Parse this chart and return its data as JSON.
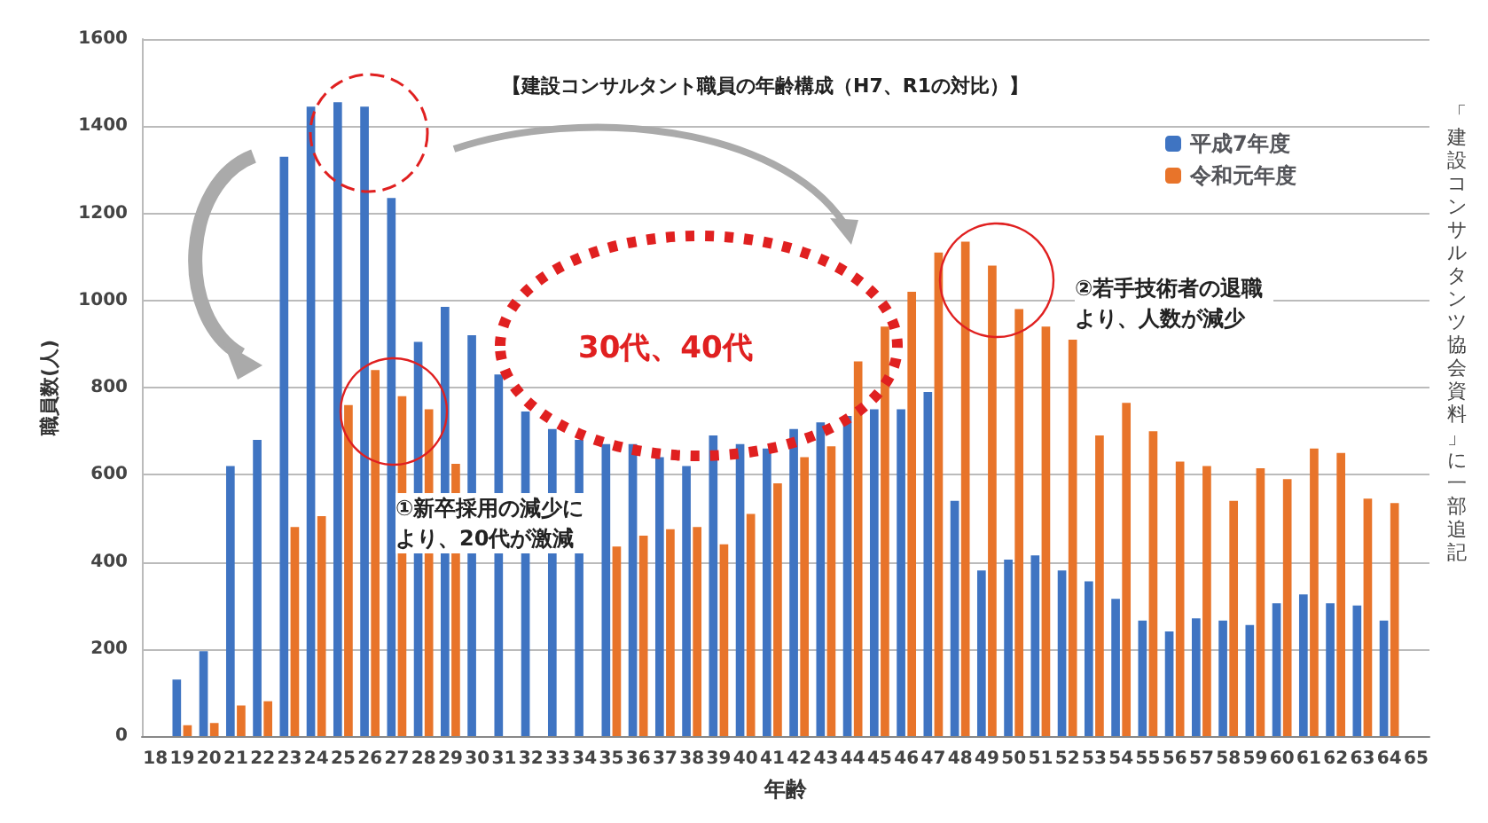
{
  "chart_data": {
    "type": "bar",
    "title": "【建設コンサルタント職員の年齢構成（H7、R1の対比）】",
    "xlabel": "年齢",
    "ylabel": "職員数(人)",
    "categories": [
      "18",
      "19",
      "20",
      "21",
      "22",
      "23",
      "24",
      "25",
      "26",
      "27",
      "28",
      "29",
      "30",
      "31",
      "32",
      "33",
      "34",
      "35",
      "36",
      "37",
      "38",
      "39",
      "40",
      "41",
      "42",
      "43",
      "44",
      "45",
      "46",
      "47",
      "48",
      "49",
      "50",
      "51",
      "52",
      "53",
      "54",
      "55",
      "56",
      "57",
      "58",
      "59",
      "60",
      "61",
      "62",
      "63",
      "64",
      "65"
    ],
    "series": [
      {
        "name": "平成7年度",
        "color": "#3f74c2",
        "values": [
          null,
          130,
          195,
          620,
          680,
          1330,
          1445,
          1455,
          1445,
          1235,
          905,
          985,
          920,
          830,
          745,
          705,
          680,
          670,
          670,
          640,
          620,
          690,
          670,
          660,
          705,
          720,
          735,
          750,
          750,
          790,
          540,
          380,
          405,
          415,
          380,
          355,
          315,
          265,
          240,
          270,
          265,
          255,
          305,
          325,
          305,
          300,
          265,
          null
        ]
      },
      {
        "name": "令和元年度",
        "color": "#e8742a",
        "values": [
          null,
          25,
          30,
          70,
          80,
          480,
          505,
          760,
          840,
          780,
          750,
          625,
          null,
          null,
          null,
          null,
          null,
          435,
          460,
          475,
          480,
          440,
          510,
          580,
          640,
          665,
          860,
          940,
          1020,
          1110,
          1135,
          1080,
          980,
          940,
          910,
          690,
          765,
          700,
          630,
          620,
          540,
          615,
          590,
          660,
          650,
          545,
          535,
          null
        ]
      }
    ],
    "ylim": [
      0,
      1600
    ],
    "yticks": [
      0,
      200,
      400,
      600,
      800,
      1000,
      1200,
      1400,
      1600
    ],
    "grid": "y",
    "legend": "top right",
    "annotations": [
      "①新卒採用の減少により、20代が激減",
      "②若手技術者の退職より、人数が減少",
      "30代、40代",
      "「建設コンサルタンツ協会資料」に一部追記"
    ]
  }
}
